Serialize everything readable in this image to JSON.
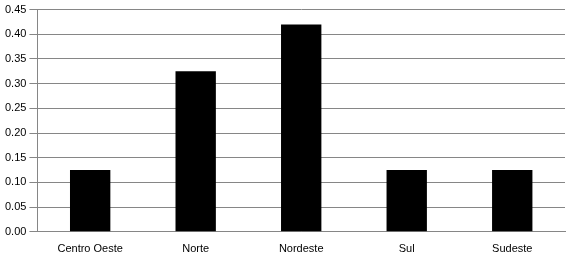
{
  "chart_data": {
    "type": "bar",
    "categories": [
      "Centro Oeste",
      "Norte",
      "Nordeste",
      "Sul",
      "Sudeste"
    ],
    "values": [
      0.125,
      0.325,
      0.42,
      0.125,
      0.125
    ],
    "color": "#000000",
    "ylim": [
      0,
      0.45
    ],
    "yticks": [
      {
        "value": 0,
        "label": "0.00"
      },
      {
        "value": 0.05,
        "label": "0.05"
      },
      {
        "value": 0.1,
        "label": "0.10"
      },
      {
        "value": 0.15,
        "label": "0.15"
      },
      {
        "value": 0.2,
        "label": "0.20"
      },
      {
        "value": 0.25,
        "label": "0.25"
      },
      {
        "value": 0.3,
        "label": "0.30"
      },
      {
        "value": 0.35,
        "label": "0.35"
      },
      {
        "value": 0.4,
        "label": "0.40"
      },
      {
        "value": 0.45,
        "label": "0.45"
      }
    ],
    "grid": true
  }
}
